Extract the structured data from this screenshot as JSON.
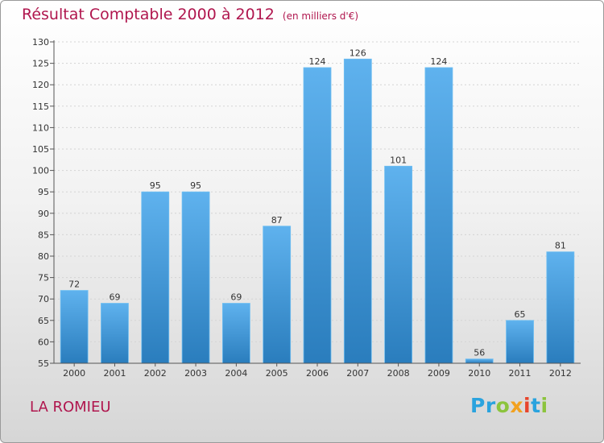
{
  "header": {
    "title": "Résultat Comptable 2000 à 2012",
    "unit": "(en milliers d'€)"
  },
  "footer": {
    "city": "LA ROMIEU",
    "logo_letters": [
      "P",
      "r",
      "o",
      "x",
      "i",
      "t",
      "i"
    ],
    "logo_colors": [
      "#2aa3de",
      "#2aa3de",
      "#8cc43d",
      "#f2a11f",
      "#e8452c",
      "#2aa3de",
      "#8cc43d"
    ]
  },
  "colors": {
    "bar_top": "#5fb2ee",
    "bar_bottom": "#2a7dbd",
    "title": "#b0164e"
  },
  "chart_data": {
    "type": "bar",
    "title": "Résultat Comptable 2000 à 2012",
    "subtitle": "(en milliers d'€)",
    "xlabel": "",
    "ylabel": "",
    "categories": [
      "2000",
      "2001",
      "2002",
      "2003",
      "2004",
      "2005",
      "2006",
      "2007",
      "2008",
      "2009",
      "2010",
      "2011",
      "2012"
    ],
    "values": [
      72,
      69,
      95,
      95,
      69,
      87,
      124,
      126,
      101,
      124,
      56,
      65,
      81
    ],
    "ylim": [
      55,
      130
    ],
    "yticks": [
      55,
      60,
      65,
      70,
      75,
      80,
      85,
      90,
      95,
      100,
      105,
      110,
      115,
      120,
      125,
      130
    ],
    "grid": true
  }
}
